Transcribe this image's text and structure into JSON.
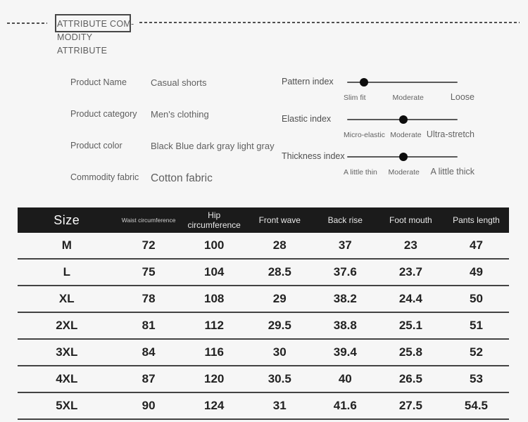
{
  "header": {
    "title_line1": "ATTRIBUTE COM-",
    "title_line2": "MODITY ATTRIBUTE"
  },
  "attributes": [
    {
      "label": "Product Name",
      "value": "Casual shorts"
    },
    {
      "label": "Product category",
      "value": "Men's clothing"
    },
    {
      "label": "Product color",
      "value": "Black Blue dark gray light gray"
    },
    {
      "label": "Commodity fabric",
      "value": "Cotton fabric"
    }
  ],
  "sliders": [
    {
      "label": "Pattern index",
      "position_pct": 15,
      "ticks": [
        "Slim fit",
        "Moderate",
        "Loose"
      ]
    },
    {
      "label": "Elastic index",
      "position_pct": 51,
      "ticks": [
        "Micro-elastic",
        "Moderate",
        "Ultra-stretch"
      ]
    },
    {
      "label": "Thickness index",
      "position_pct": 51,
      "ticks": [
        "A little thin",
        "Moderate",
        "A little thick"
      ]
    }
  ],
  "size_table": {
    "columns": [
      "Size",
      "Waist circumference",
      "Hip circumference",
      "Front wave",
      "Back rise",
      "Foot mouth",
      "Pants length"
    ],
    "rows": [
      [
        "M",
        "72",
        "100",
        "28",
        "37",
        "23",
        "47"
      ],
      [
        "L",
        "75",
        "104",
        "28.5",
        "37.6",
        "23.7",
        "49"
      ],
      [
        "XL",
        "78",
        "108",
        "29",
        "38.2",
        "24.4",
        "50"
      ],
      [
        "2XL",
        "81",
        "112",
        "29.5",
        "38.8",
        "25.1",
        "51"
      ],
      [
        "3XL",
        "84",
        "116",
        "30",
        "39.4",
        "25.8",
        "52"
      ],
      [
        "4XL",
        "87",
        "120",
        "30.5",
        "40",
        "26.5",
        "53"
      ],
      [
        "5XL",
        "90",
        "124",
        "31",
        "41.6",
        "27.5",
        "54.5"
      ]
    ]
  },
  "colors": {
    "page_bg": "#f6f6f6",
    "header_bar": "#1b1b1b",
    "text_dark": "#222222",
    "text_gray": "#5d5d5d",
    "dash_color": "#4f4f4f",
    "box_border": "#474747",
    "thumb_color": "#0d0d0d"
  }
}
